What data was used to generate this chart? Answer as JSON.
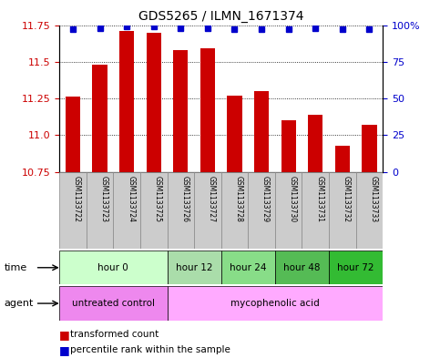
{
  "title": "GDS5265 / ILMN_1671374",
  "samples": [
    "GSM1133722",
    "GSM1133723",
    "GSM1133724",
    "GSM1133725",
    "GSM1133726",
    "GSM1133727",
    "GSM1133728",
    "GSM1133729",
    "GSM1133730",
    "GSM1133731",
    "GSM1133732",
    "GSM1133733"
  ],
  "bar_values": [
    11.26,
    11.48,
    11.71,
    11.7,
    11.58,
    11.59,
    11.27,
    11.3,
    11.1,
    11.14,
    10.93,
    11.07
  ],
  "percentile_values": [
    97,
    98,
    99,
    99,
    98,
    98,
    97,
    97,
    97,
    98,
    97,
    97
  ],
  "bar_color": "#cc0000",
  "percentile_color": "#0000cc",
  "ylim_left": [
    10.75,
    11.75
  ],
  "ylim_right": [
    0,
    100
  ],
  "yticks_left": [
    10.75,
    11.0,
    11.25,
    11.5,
    11.75
  ],
  "yticks_right": [
    0,
    25,
    50,
    75,
    100
  ],
  "ytick_labels_right": [
    "0",
    "25",
    "50",
    "75",
    "100%"
  ],
  "grid_values": [
    11.0,
    11.25,
    11.5,
    11.75
  ],
  "time_groups": [
    {
      "label": "hour 0",
      "start": 0,
      "end": 3,
      "color": "#ccffcc"
    },
    {
      "label": "hour 12",
      "start": 4,
      "end": 5,
      "color": "#aaddaa"
    },
    {
      "label": "hour 24",
      "start": 6,
      "end": 7,
      "color": "#88dd88"
    },
    {
      "label": "hour 48",
      "start": 8,
      "end": 9,
      "color": "#55bb55"
    },
    {
      "label": "hour 72",
      "start": 10,
      "end": 11,
      "color": "#33bb33"
    }
  ],
  "agent_groups": [
    {
      "label": "untreated control",
      "start": 0,
      "end": 3,
      "color": "#ee88ee"
    },
    {
      "label": "mycophenolic acid",
      "start": 4,
      "end": 11,
      "color": "#ffaaff"
    }
  ],
  "bar_width": 0.55,
  "sample_box_color": "#cccccc",
  "sample_box_edge": "#888888",
  "plot_bg": "#ffffff",
  "fig_bg": "#ffffff"
}
